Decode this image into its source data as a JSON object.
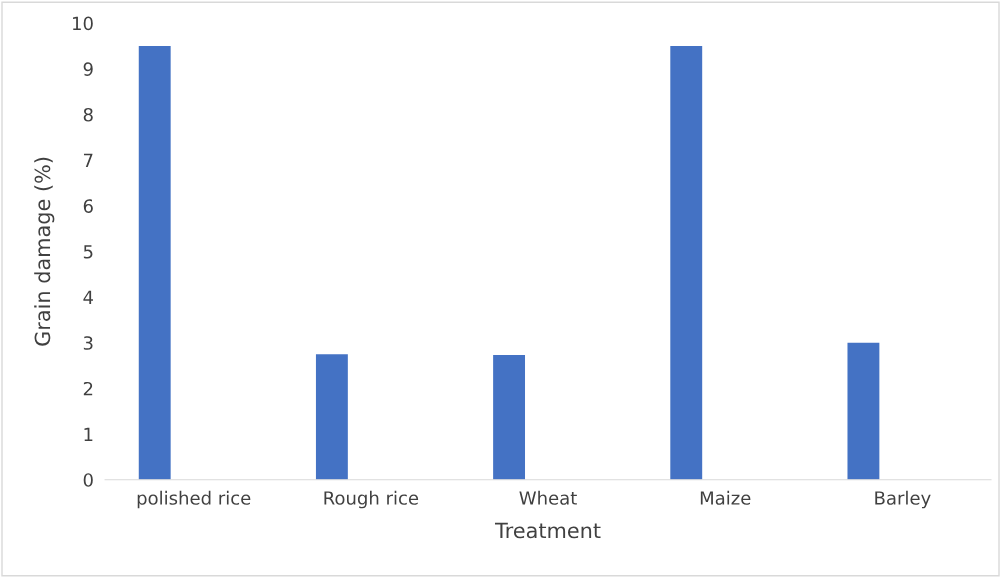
{
  "chart_data": {
    "type": "bar",
    "xlabel": "Treatment",
    "ylabel": "Grain damage (%)",
    "categories": [
      "polished rice",
      "Rough rice",
      "Wheat",
      "Maize",
      "Barley"
    ],
    "series": [
      {
        "color": "#4472c4",
        "values": [
          9.5,
          2.75,
          2.73,
          9.5,
          3.0
        ]
      }
    ],
    "ylim": [
      0,
      10
    ],
    "yticks": [
      0,
      1,
      2,
      3,
      4,
      5,
      6,
      7,
      8,
      9,
      10
    ],
    "grid": false
  }
}
